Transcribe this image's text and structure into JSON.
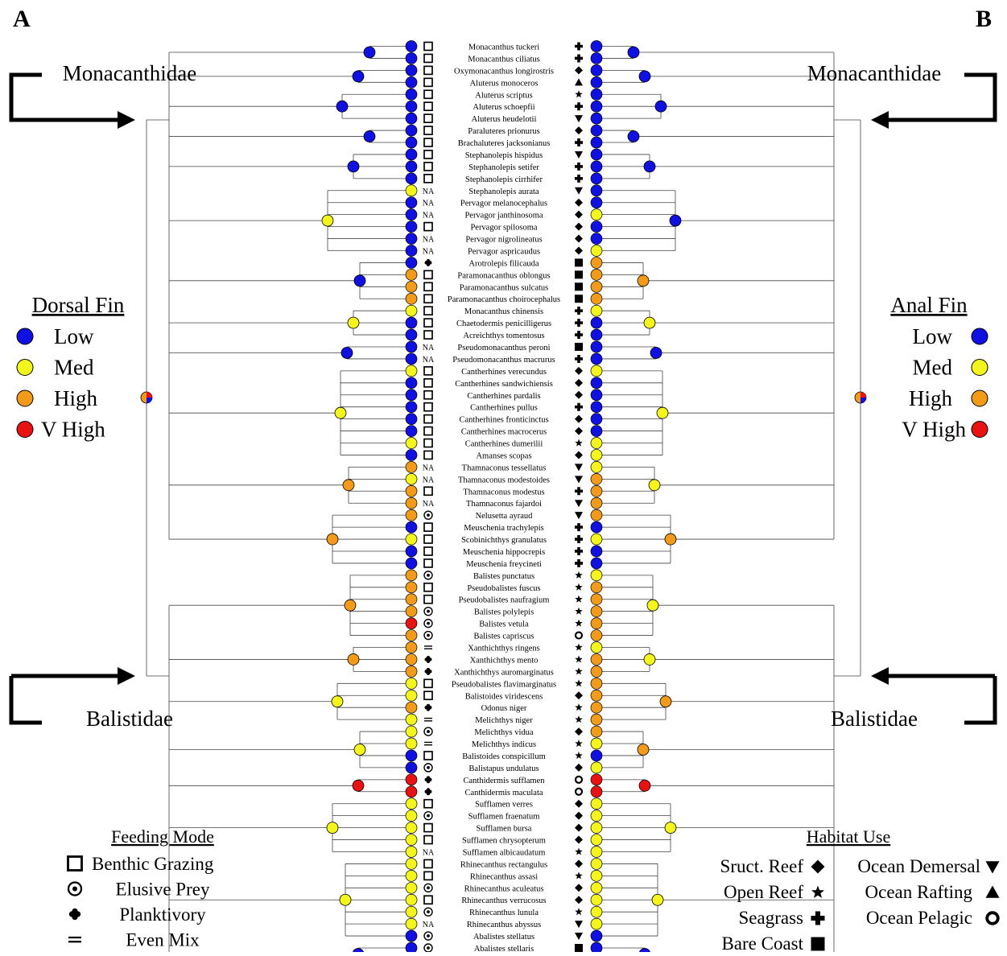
{
  "panels": {
    "left": "A",
    "right": "B"
  },
  "families": {
    "top": "Monacanthidae",
    "bottom": "Balistidae"
  },
  "legends": {
    "dorsal": {
      "title": "Dorsal Fin",
      "items": [
        {
          "label": "Low",
          "color": "#1010e0"
        },
        {
          "label": "Med",
          "color": "#f5f51e"
        },
        {
          "label": "High",
          "color": "#f29a1a"
        },
        {
          "label": "V High",
          "color": "#e81212"
        }
      ]
    },
    "anal": {
      "title": "Anal Fin",
      "items": [
        {
          "label": "Low",
          "color": "#1010e0"
        },
        {
          "label": "Med",
          "color": "#f5f51e"
        },
        {
          "label": "High",
          "color": "#f29a1a"
        },
        {
          "label": "V High",
          "color": "#e81212"
        }
      ]
    },
    "feeding": {
      "title": "Feeding Mode",
      "items": [
        {
          "label": "Benthic Grazing",
          "sym": "square"
        },
        {
          "label": "Elusive Prey",
          "sym": "target"
        },
        {
          "label": "Planktivory",
          "sym": "club"
        },
        {
          "label": "Even Mix",
          "sym": "equal"
        }
      ]
    },
    "habitat": {
      "title": "Habitat Use",
      "items": [
        {
          "label": "Sruct. Reef",
          "sym": "diamond"
        },
        {
          "label": "Ocean Demersal",
          "sym": "tridown"
        },
        {
          "label": "Open Reef",
          "sym": "star"
        },
        {
          "label": "Ocean Rafting",
          "sym": "triup"
        },
        {
          "label": "Seagrass",
          "sym": "cross"
        },
        {
          "label": "Ocean Pelagic",
          "sym": "ring"
        },
        {
          "label": "Bare Coast",
          "sym": "fsquare"
        }
      ]
    }
  },
  "na_label": "NA",
  "taxa": [
    {
      "name": "Monacanthus tuckeri",
      "d": "L",
      "a": "L",
      "f": "B",
      "h": "C"
    },
    {
      "name": "Monacanthus ciliatus",
      "d": "L",
      "a": "L",
      "f": "B",
      "h": "C"
    },
    {
      "name": "Oxymonacanthus longirostris",
      "d": "L",
      "a": "L",
      "f": "B",
      "h": "D"
    },
    {
      "name": "Aluterus monoceros",
      "d": "L",
      "a": "L",
      "f": "B",
      "h": "R"
    },
    {
      "name": "Aluterus scriptus",
      "d": "L",
      "a": "L",
      "f": "B",
      "h": "S"
    },
    {
      "name": "Aluterus schoepfii",
      "d": "L",
      "a": "L",
      "f": "B",
      "h": "C"
    },
    {
      "name": "Aluterus heudelotii",
      "d": "L",
      "a": "L",
      "f": "B",
      "h": "T"
    },
    {
      "name": "Paraluteres prionurus",
      "d": "L",
      "a": "L",
      "f": "B",
      "h": "D"
    },
    {
      "name": "Brachaluteres jacksonianus",
      "d": "L",
      "a": "L",
      "f": "B",
      "h": "C"
    },
    {
      "name": "Stephanolepis hispidus",
      "d": "L",
      "a": "L",
      "f": "B",
      "h": "T"
    },
    {
      "name": "Stephanolepis setifer",
      "d": "L",
      "a": "L",
      "f": "B",
      "h": "C"
    },
    {
      "name": "Stephanolepis cirrhifer",
      "d": "L",
      "a": "L",
      "f": "B",
      "h": "C"
    },
    {
      "name": "Stephanolepis aurata",
      "d": "M",
      "a": "L",
      "f": "NA",
      "h": "T"
    },
    {
      "name": "Pervagor melanocephalus",
      "d": "L",
      "a": "L",
      "f": "NA",
      "h": "D"
    },
    {
      "name": "Pervagor janthinosoma",
      "d": "L",
      "a": "M",
      "f": "NA",
      "h": "D"
    },
    {
      "name": "Pervagor spilosoma",
      "d": "L",
      "a": "L",
      "f": "B",
      "h": "D"
    },
    {
      "name": "Pervagor nigrolineatus",
      "d": "L",
      "a": "L",
      "f": "NA",
      "h": "D"
    },
    {
      "name": "Pervagor aspricaudus",
      "d": "L",
      "a": "M",
      "f": "NA",
      "h": "D"
    },
    {
      "name": "Arotrolepis filicauda",
      "d": "L",
      "a": "H",
      "f": "P",
      "h": "F"
    },
    {
      "name": "Paramonacanthus oblongus",
      "d": "H",
      "a": "H",
      "f": "B",
      "h": "F"
    },
    {
      "name": "Paramonacanthus sulcatus",
      "d": "H",
      "a": "H",
      "f": "B",
      "h": "F"
    },
    {
      "name": "Paramonacanthus choirocephalus",
      "d": "H",
      "a": "H",
      "f": "B",
      "h": "F"
    },
    {
      "name": "Monacanthus chinensis",
      "d": "M",
      "a": "M",
      "f": "B",
      "h": "C"
    },
    {
      "name": "Chaetodermis penicilligerus",
      "d": "L",
      "a": "L",
      "f": "B",
      "h": "C"
    },
    {
      "name": "Acreichthys tomentosus",
      "d": "L",
      "a": "L",
      "f": "B",
      "h": "C"
    },
    {
      "name": "Pseudomonacanthus peroni",
      "d": "L",
      "a": "L",
      "f": "NA",
      "h": "F"
    },
    {
      "name": "Pseudomonacanthus macrurus",
      "d": "L",
      "a": "L",
      "f": "NA",
      "h": "C"
    },
    {
      "name": "Cantherhines verecundus",
      "d": "M",
      "a": "M",
      "f": "B",
      "h": "D"
    },
    {
      "name": "Cantherhines sandwichiensis",
      "d": "L",
      "a": "L",
      "f": "B",
      "h": "D"
    },
    {
      "name": "Cantherhines pardalis",
      "d": "L",
      "a": "L",
      "f": "B",
      "h": "D"
    },
    {
      "name": "Cantherhines pullus",
      "d": "L",
      "a": "L",
      "f": "B",
      "h": "C"
    },
    {
      "name": "Cantherhines fronticinctus",
      "d": "L",
      "a": "L",
      "f": "B",
      "h": "D"
    },
    {
      "name": "Cantherhines macrocerus",
      "d": "L",
      "a": "L",
      "f": "B",
      "h": "D"
    },
    {
      "name": "Cantherhines dumerilii",
      "d": "M",
      "a": "M",
      "f": "B",
      "h": "S"
    },
    {
      "name": "Amanses scopas",
      "d": "L",
      "a": "M",
      "f": "B",
      "h": "D"
    },
    {
      "name": "Thamnaconus tessellatus",
      "d": "H",
      "a": "M",
      "f": "NA",
      "h": "T"
    },
    {
      "name": "Thamnaconus modestoides",
      "d": "M",
      "a": "H",
      "f": "NA",
      "h": "T"
    },
    {
      "name": "Thamnaconus modestus",
      "d": "H",
      "a": "H",
      "f": "B",
      "h": "C"
    },
    {
      "name": "Thamnaconus fajardoi",
      "d": "H",
      "a": "H",
      "f": "NA",
      "h": "T"
    },
    {
      "name": "Nelusetta ayraud",
      "d": "H",
      "a": "H",
      "f": "E",
      "h": "T"
    },
    {
      "name": "Meuschenia trachylepis",
      "d": "L",
      "a": "L",
      "f": "B",
      "h": "C"
    },
    {
      "name": "Scobinichthys granulatus",
      "d": "M",
      "a": "M",
      "f": "B",
      "h": "C"
    },
    {
      "name": "Meuschenia hippocrepis",
      "d": "L",
      "a": "L",
      "f": "B",
      "h": "C"
    },
    {
      "name": "Meuschenia freycineti",
      "d": "L",
      "a": "L",
      "f": "B",
      "h": "C"
    },
    {
      "name": "Balistes punctatus",
      "d": "H",
      "a": "M",
      "f": "E",
      "h": "S"
    },
    {
      "name": "Pseudobalistes fuscus",
      "d": "H",
      "a": "H",
      "f": "B",
      "h": "S"
    },
    {
      "name": "Pseudobalistes naufragium",
      "d": "H",
      "a": "H",
      "f": "B",
      "h": "S"
    },
    {
      "name": "Balistes polylepis",
      "d": "H",
      "a": "H",
      "f": "E",
      "h": "S"
    },
    {
      "name": "Balistes vetula",
      "d": "V",
      "a": "H",
      "f": "E",
      "h": "S"
    },
    {
      "name": "Balistes capriscus",
      "d": "H",
      "a": "H",
      "f": "E",
      "h": "O"
    },
    {
      "name": "Xanthichthys ringens",
      "d": "H",
      "a": "M",
      "f": "Q",
      "h": "S"
    },
    {
      "name": "Xanthichthys mento",
      "d": "H",
      "a": "H",
      "f": "P",
      "h": "S"
    },
    {
      "name": "Xanthichthys auromarginatus",
      "d": "H",
      "a": "H",
      "f": "P",
      "h": "S"
    },
    {
      "name": "Pseudobalistes flavimarginatus",
      "d": "M",
      "a": "H",
      "f": "B",
      "h": "S"
    },
    {
      "name": "Balistoides viridescens",
      "d": "M",
      "a": "H",
      "f": "B",
      "h": "D"
    },
    {
      "name": "Odonus niger",
      "d": "H",
      "a": "H",
      "f": "P",
      "h": "S"
    },
    {
      "name": "Melichthys niger",
      "d": "M",
      "a": "H",
      "f": "Q",
      "h": "S"
    },
    {
      "name": "Melichthys vidua",
      "d": "M",
      "a": "H",
      "f": "E",
      "h": "D"
    },
    {
      "name": "Melichthys indicus",
      "d": "M",
      "a": "M",
      "f": "Q",
      "h": "S"
    },
    {
      "name": "Balistoides conspicillum",
      "d": "L",
      "a": "L",
      "f": "B",
      "h": "S"
    },
    {
      "name": "Balistapus undulatus",
      "d": "L",
      "a": "M",
      "f": "E",
      "h": "D"
    },
    {
      "name": "Canthidermis sufflamen",
      "d": "V",
      "a": "V",
      "f": "P",
      "h": "O"
    },
    {
      "name": "Canthidermis maculata",
      "d": "V",
      "a": "V",
      "f": "P",
      "h": "O"
    },
    {
      "name": "Sufflamen verres",
      "d": "M",
      "a": "M",
      "f": "B",
      "h": "D"
    },
    {
      "name": "Sufflamen fraenatum",
      "d": "M",
      "a": "M",
      "f": "E",
      "h": "D"
    },
    {
      "name": "Sufflamen bursa",
      "d": "M",
      "a": "M",
      "f": "B",
      "h": "D"
    },
    {
      "name": "Sufflamen chrysopterum",
      "d": "M",
      "a": "M",
      "f": "B",
      "h": "D"
    },
    {
      "name": "Sufflamen albicaudatum",
      "d": "M",
      "a": "M",
      "f": "NA",
      "h": "S"
    },
    {
      "name": "Rhinecanthus rectangulus",
      "d": "M",
      "a": "M",
      "f": "B",
      "h": "D"
    },
    {
      "name": "Rhinecanthus assasi",
      "d": "M",
      "a": "M",
      "f": "B",
      "h": "S"
    },
    {
      "name": "Rhinecanthus aculeatus",
      "d": "M",
      "a": "M",
      "f": "E",
      "h": "D"
    },
    {
      "name": "Rhinecanthus verrucosus",
      "d": "M",
      "a": "M",
      "f": "B",
      "h": "D"
    },
    {
      "name": "Rhinecanthus lunula",
      "d": "M",
      "a": "M",
      "f": "E",
      "h": "S"
    },
    {
      "name": "Rhinecanthus abyssus",
      "d": "M",
      "a": "M",
      "f": "NA",
      "h": "T"
    },
    {
      "name": "Abalistes stellatus",
      "d": "L",
      "a": "L",
      "f": "E",
      "h": "T"
    },
    {
      "name": "Abalistes stellaris",
      "d": "L",
      "a": "L",
      "f": "E",
      "h": "F"
    }
  ]
}
